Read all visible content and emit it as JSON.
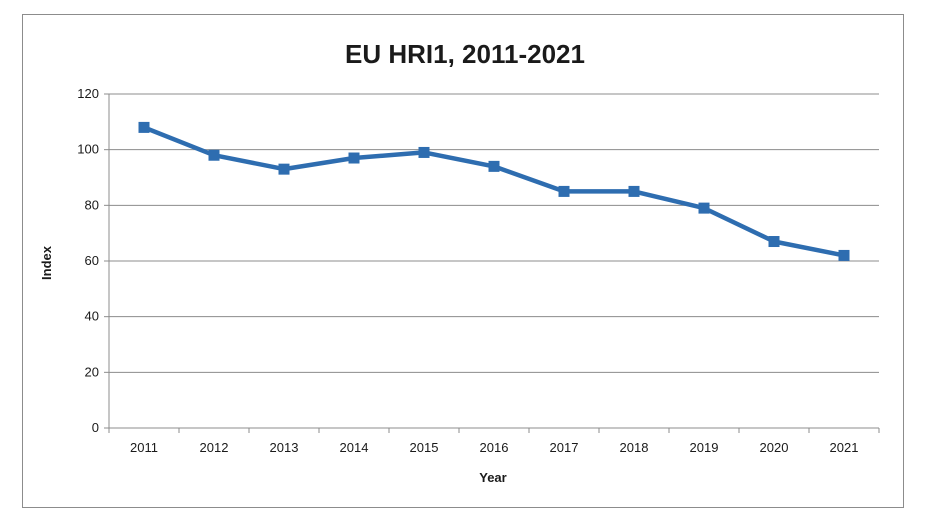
{
  "chart_data": {
    "type": "line",
    "title": "EU HRI1, 2011-2021",
    "xlabel": "Year",
    "ylabel": "Index",
    "categories": [
      "2011",
      "2012",
      "2013",
      "2014",
      "2015",
      "2016",
      "2017",
      "2018",
      "2019",
      "2020",
      "2021"
    ],
    "series": [
      {
        "values": [
          108,
          98,
          93,
          97,
          99,
          94,
          85,
          85,
          79,
          67,
          62
        ],
        "color": "#2e6db0",
        "marker": "square"
      }
    ],
    "ylim": [
      0,
      120
    ],
    "yticks": [
      "0",
      "20",
      "40",
      "60",
      "80",
      "100",
      "120"
    ],
    "grid": true,
    "legend": "none"
  }
}
